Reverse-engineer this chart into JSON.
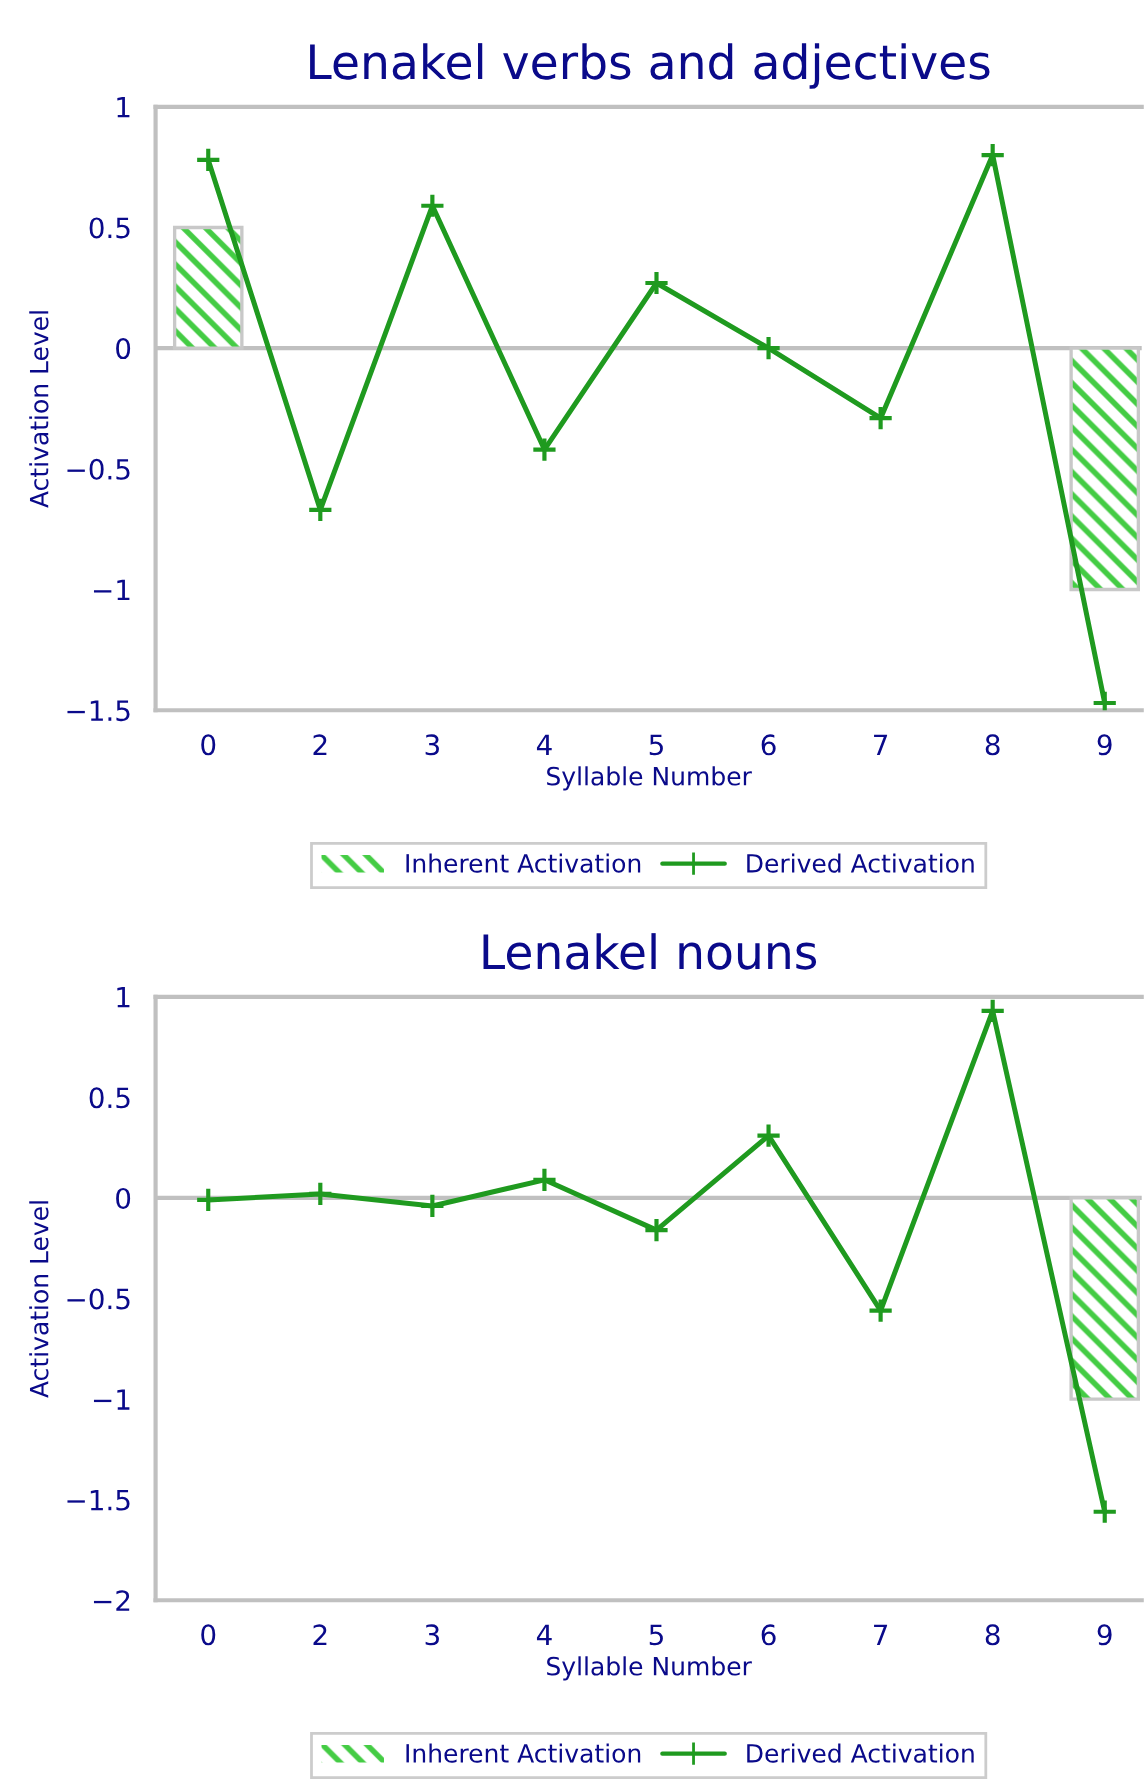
{
  "chart_data": [
    {
      "type": "bar",
      "title": "Lenakel verbs and adjectives",
      "xlabel": "Syllable Number",
      "ylabel": "Activation Level",
      "categories": [
        "0",
        "2",
        "3",
        "4",
        "5",
        "6",
        "7",
        "8",
        "9"
      ],
      "ylim": [
        -1.5,
        1
      ],
      "yticks": [
        {
          "value": -1.5,
          "label": "−1.5"
        },
        {
          "value": -1,
          "label": "−1"
        },
        {
          "value": -0.5,
          "label": "−0.5"
        },
        0,
        0.5,
        1
      ],
      "grid": false,
      "legend": "bottom",
      "marker": "cross",
      "line_style": "solid",
      "ref_lines": [
        {
          "axis": "y",
          "value": 0,
          "color": "#c0c0c0"
        }
      ],
      "series": [
        {
          "name": "Inherent Activation",
          "color": "#44cc44",
          "values": [
            0.5,
            null,
            null,
            null,
            null,
            null,
            null,
            null,
            -1
          ]
        },
        {
          "name": "Derived Activation",
          "type": "line",
          "color": "#1f9a1f",
          "values": [
            0.78,
            -0.67,
            0.59,
            -0.42,
            0.27,
            0.0,
            -0.29,
            0.8,
            -1.47
          ]
        }
      ]
    },
    {
      "type": "bar",
      "title": "Lenakel nouns",
      "xlabel": "Syllable Number",
      "ylabel": "Activation Level",
      "categories": [
        "0",
        "2",
        "3",
        "4",
        "5",
        "6",
        "7",
        "8",
        "9"
      ],
      "ylim": [
        -2,
        1
      ],
      "yticks": [
        {
          "value": -2,
          "label": "−2"
        },
        {
          "value": -1.5,
          "label": "−1.5"
        },
        {
          "value": -1,
          "label": "−1"
        },
        {
          "value": -0.5,
          "label": "−0.5"
        },
        0,
        0.5,
        1
      ],
      "grid": false,
      "legend": "bottom",
      "marker": "cross",
      "line_style": "solid",
      "ref_lines": [
        {
          "axis": "y",
          "value": 0,
          "color": "#c0c0c0"
        }
      ],
      "series": [
        {
          "name": "Inherent Activation",
          "color": "#44cc44",
          "values": [
            null,
            null,
            null,
            null,
            null,
            null,
            null,
            null,
            -1
          ]
        },
        {
          "name": "Derived Activation",
          "type": "line",
          "color": "#1f9a1f",
          "values": [
            -0.01,
            0.02,
            -0.04,
            0.09,
            -0.16,
            0.31,
            -0.56,
            0.93,
            -1.56
          ]
        }
      ]
    }
  ]
}
